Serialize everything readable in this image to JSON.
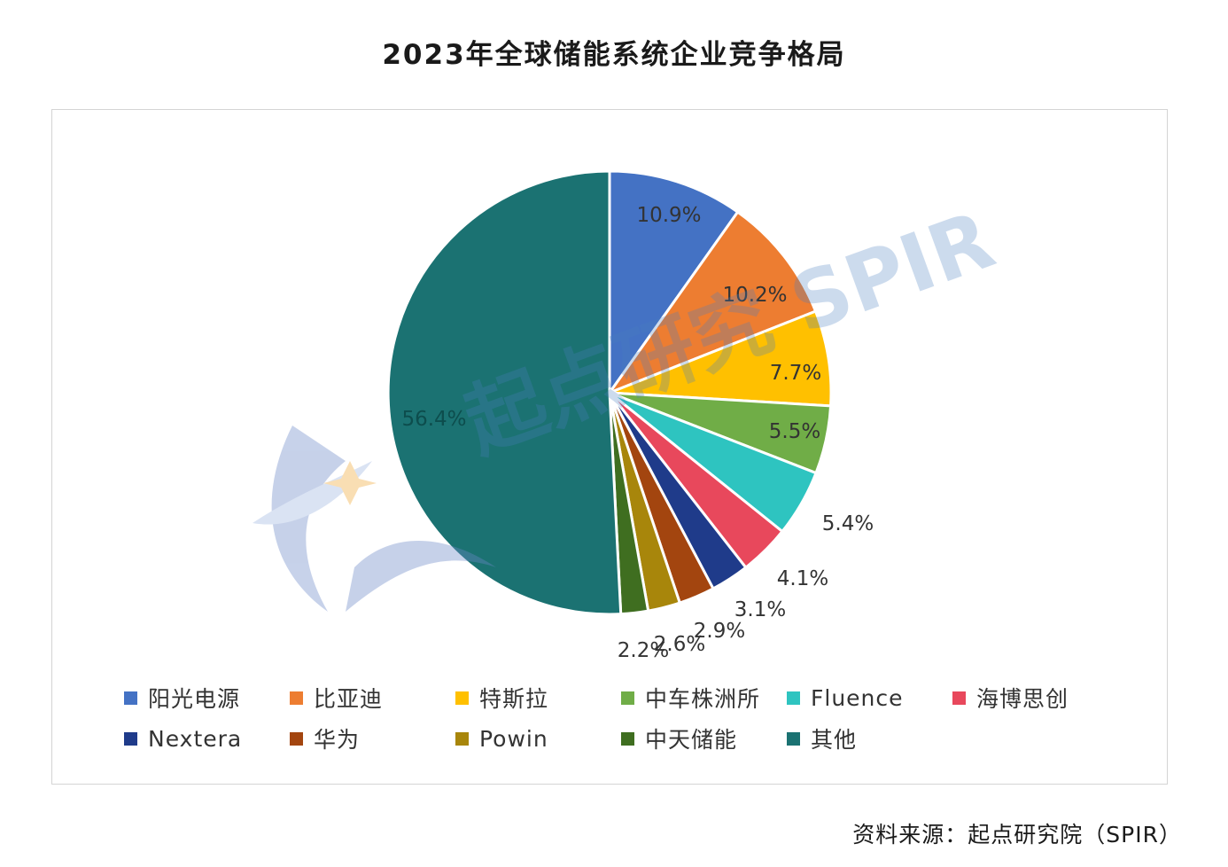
{
  "title": "2023年全球储能系统企业竞争格局",
  "source": "资料来源：起点研究院（SPIR）",
  "watermark_text": "起点研究 SPIR",
  "chart_data": {
    "type": "pie",
    "title": "2023年全球储能系统企业竞争格局",
    "unit": "%",
    "legend_position": "bottom",
    "slices": [
      {
        "label": "阳光电源",
        "value": 10.9,
        "value_label": "10.9%",
        "color": "#4472c4"
      },
      {
        "label": "比亚迪",
        "value": 10.2,
        "value_label": "10.2%",
        "color": "#ed7d31"
      },
      {
        "label": "特斯拉",
        "value": 7.7,
        "value_label": "7.7%",
        "color": "#ffc000"
      },
      {
        "label": "中车株洲所",
        "value": 5.5,
        "value_label": "5.5%",
        "color": "#70ad47"
      },
      {
        "label": "Fluence",
        "value": 5.4,
        "value_label": "5.4%",
        "color": "#2ec4c0"
      },
      {
        "label": "海博思创",
        "value": 4.1,
        "value_label": "4.1%",
        "color": "#e8485c"
      },
      {
        "label": "Nextera",
        "value": 3.1,
        "value_label": "3.1%",
        "color": "#1f3b8a"
      },
      {
        "label": "华为",
        "value": 2.9,
        "value_label": "2.9%",
        "color": "#a3450f"
      },
      {
        "label": "Powin",
        "value": 2.6,
        "value_label": "2.6%",
        "color": "#a8860b"
      },
      {
        "label": "中天储能",
        "value": 2.2,
        "value_label": "2.2%",
        "color": "#3f6e20"
      },
      {
        "label": "其他",
        "value": 56.4,
        "value_label": "56.4%",
        "color": "#1b7272"
      }
    ]
  }
}
